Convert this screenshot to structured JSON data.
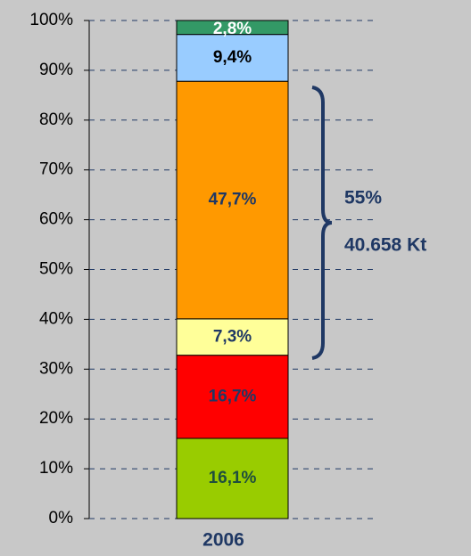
{
  "chart_data": {
    "type": "stacked_bar",
    "categories": [
      "2006"
    ],
    "series": [
      {
        "color": "#99cc00",
        "label_color": "#1f4e3d",
        "values": [
          16.1
        ],
        "value_labels": [
          "16,1%"
        ]
      },
      {
        "color": "#ff0000",
        "label_color": "#1f3864",
        "values": [
          16.7
        ],
        "value_labels": [
          "16,7%"
        ]
      },
      {
        "color": "#ffff99",
        "label_color": "#1f3864",
        "values": [
          7.3
        ],
        "value_labels": [
          "7,3%"
        ]
      },
      {
        "color": "#ff9900",
        "label_color": "#1f3864",
        "values": [
          47.7
        ],
        "value_labels": [
          "47,7%"
        ]
      },
      {
        "color": "#99ccff",
        "label_color": "#000000",
        "values": [
          9.4
        ],
        "value_labels": [
          "9,4%"
        ]
      },
      {
        "color": "#339966",
        "label_color": "#ffffff",
        "values": [
          2.8
        ],
        "value_labels": [
          "2,8%"
        ]
      }
    ],
    "ylim": [
      0,
      100
    ],
    "yticks": [
      {
        "value": 0,
        "label": "0%"
      },
      {
        "value": 10,
        "label": "10%"
      },
      {
        "value": 20,
        "label": "20%"
      },
      {
        "value": 30,
        "label": "30%"
      },
      {
        "value": 40,
        "label": "40%"
      },
      {
        "value": 50,
        "label": "50%"
      },
      {
        "value": 60,
        "label": "60%"
      },
      {
        "value": 70,
        "label": "70%"
      },
      {
        "value": 80,
        "label": "80%"
      },
      {
        "value": 90,
        "label": "90%"
      },
      {
        "value": 100,
        "label": "100%"
      }
    ],
    "grid": true,
    "annotations": [
      "55%",
      "40.658 Kt"
    ]
  }
}
